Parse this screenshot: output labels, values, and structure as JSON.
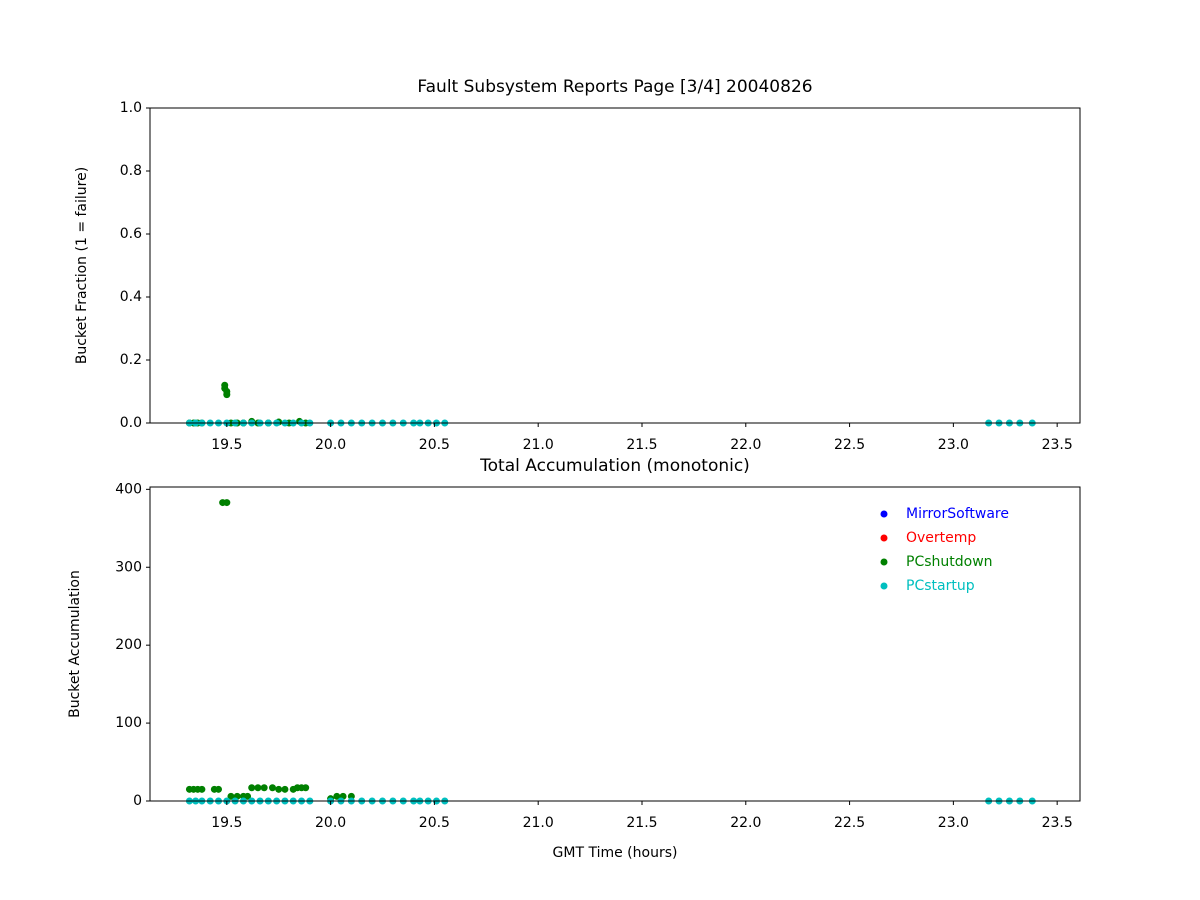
{
  "chart_data": [
    {
      "type": "scatter",
      "title": "Fault Subsystem Reports Page [3/4] 20040826",
      "y_label": "Bucket Fraction (1 = failure)",
      "xlim": [
        19.13,
        23.61
      ],
      "ylim": [
        0,
        1
      ],
      "xticks": [
        19.5,
        {
          "value": 20,
          "label": "20.0"
        },
        20.5,
        {
          "value": 21,
          "label": "21.0"
        },
        21.5,
        {
          "value": 22,
          "label": "22.0"
        },
        22.5,
        {
          "value": 23,
          "label": "23.0"
        },
        23.5
      ],
      "yticks": [
        {
          "value": 0,
          "label": "0.0"
        },
        0.2,
        0.4,
        0.6,
        0.8,
        {
          "value": 1,
          "label": "1.0"
        }
      ],
      "series": [
        {
          "name": "MirrorSoftware",
          "color": "#0000ff",
          "x": [],
          "values": []
        },
        {
          "name": "Overtemp",
          "color": "#ff0000",
          "x": [],
          "values": []
        },
        {
          "name": "PCshutdown",
          "color": "#008000",
          "x": [
            19.32,
            19.34,
            19.36,
            19.38,
            19.49,
            19.49,
            19.5,
            19.5,
            19.52,
            19.55,
            19.58,
            19.62,
            19.65,
            19.7,
            19.75,
            19.8,
            19.85,
            19.88
          ],
          "values": [
            0,
            0,
            0,
            0,
            0.12,
            0.11,
            0.1,
            0.09,
            0,
            0,
            0,
            0.005,
            0,
            0,
            0.003,
            0,
            0.005,
            0
          ]
        },
        {
          "name": "PCstartup",
          "color": "#00bfbf",
          "x": [
            19.32,
            19.35,
            19.38,
            19.42,
            19.46,
            19.5,
            19.54,
            19.58,
            19.62,
            19.66,
            19.7,
            19.74,
            19.78,
            19.82,
            19.86,
            19.9,
            20.0,
            20.05,
            20.1,
            20.15,
            20.2,
            20.25,
            20.3,
            20.35,
            20.4,
            20.43,
            20.47,
            20.51,
            20.55,
            23.17,
            23.22,
            23.27,
            23.32,
            23.38
          ],
          "values": [
            0,
            0,
            0,
            0,
            0,
            0,
            0,
            0,
            0,
            0,
            0,
            0,
            0,
            0,
            0,
            0,
            0,
            0,
            0,
            0,
            0,
            0,
            0,
            0,
            0,
            0,
            0,
            0,
            0,
            0,
            0,
            0,
            0,
            0
          ]
        }
      ]
    },
    {
      "type": "scatter",
      "title": "Total Accumulation (monotonic)",
      "y_label": "Bucket Accumulation",
      "x_label": "GMT Time (hours)",
      "xlim": [
        19.13,
        23.61
      ],
      "ylim": [
        0,
        403
      ],
      "xticks": [
        19.5,
        {
          "value": 20,
          "label": "20.0"
        },
        20.5,
        {
          "value": 21,
          "label": "21.0"
        },
        21.5,
        {
          "value": 22,
          "label": "22.0"
        },
        22.5,
        {
          "value": 23,
          "label": "23.0"
        },
        23.5
      ],
      "yticks": [
        0,
        100,
        200,
        300,
        400
      ],
      "legend": "upper right",
      "series": [
        {
          "name": "MirrorSoftware",
          "color": "#0000ff",
          "x": [],
          "values": []
        },
        {
          "name": "Overtemp",
          "color": "#ff0000",
          "x": [],
          "values": []
        },
        {
          "name": "PCshutdown",
          "color": "#008000",
          "x": [
            19.32,
            19.34,
            19.36,
            19.38,
            19.44,
            19.46,
            19.48,
            19.5,
            19.52,
            19.55,
            19.58,
            19.6,
            19.62,
            19.65,
            19.68,
            19.72,
            19.75,
            19.78,
            19.82,
            19.84,
            19.86,
            19.88,
            20.0,
            20.03,
            20.06,
            20.1
          ],
          "values": [
            15,
            15,
            15,
            15,
            15,
            15,
            383,
            383,
            6,
            6,
            6,
            6,
            17,
            17,
            17,
            17,
            15,
            15,
            15,
            17,
            17,
            17,
            3,
            6,
            6,
            6
          ]
        },
        {
          "name": "PCstartup",
          "color": "#00bfbf",
          "x": [
            19.32,
            19.35,
            19.38,
            19.42,
            19.46,
            19.5,
            19.54,
            19.58,
            19.62,
            19.66,
            19.7,
            19.74,
            19.78,
            19.82,
            19.86,
            19.9,
            20.0,
            20.05,
            20.1,
            20.15,
            20.2,
            20.25,
            20.3,
            20.35,
            20.4,
            20.43,
            20.47,
            20.51,
            20.55,
            23.17,
            23.22,
            23.27,
            23.32,
            23.38
          ],
          "values": [
            0,
            0,
            0,
            0,
            0,
            0,
            0,
            0,
            0,
            0,
            0,
            0,
            0,
            0,
            0,
            0,
            0,
            0,
            0,
            0,
            0,
            0,
            0,
            0,
            0,
            0,
            0,
            0,
            0,
            0,
            0,
            0,
            0,
            0
          ]
        }
      ]
    }
  ]
}
